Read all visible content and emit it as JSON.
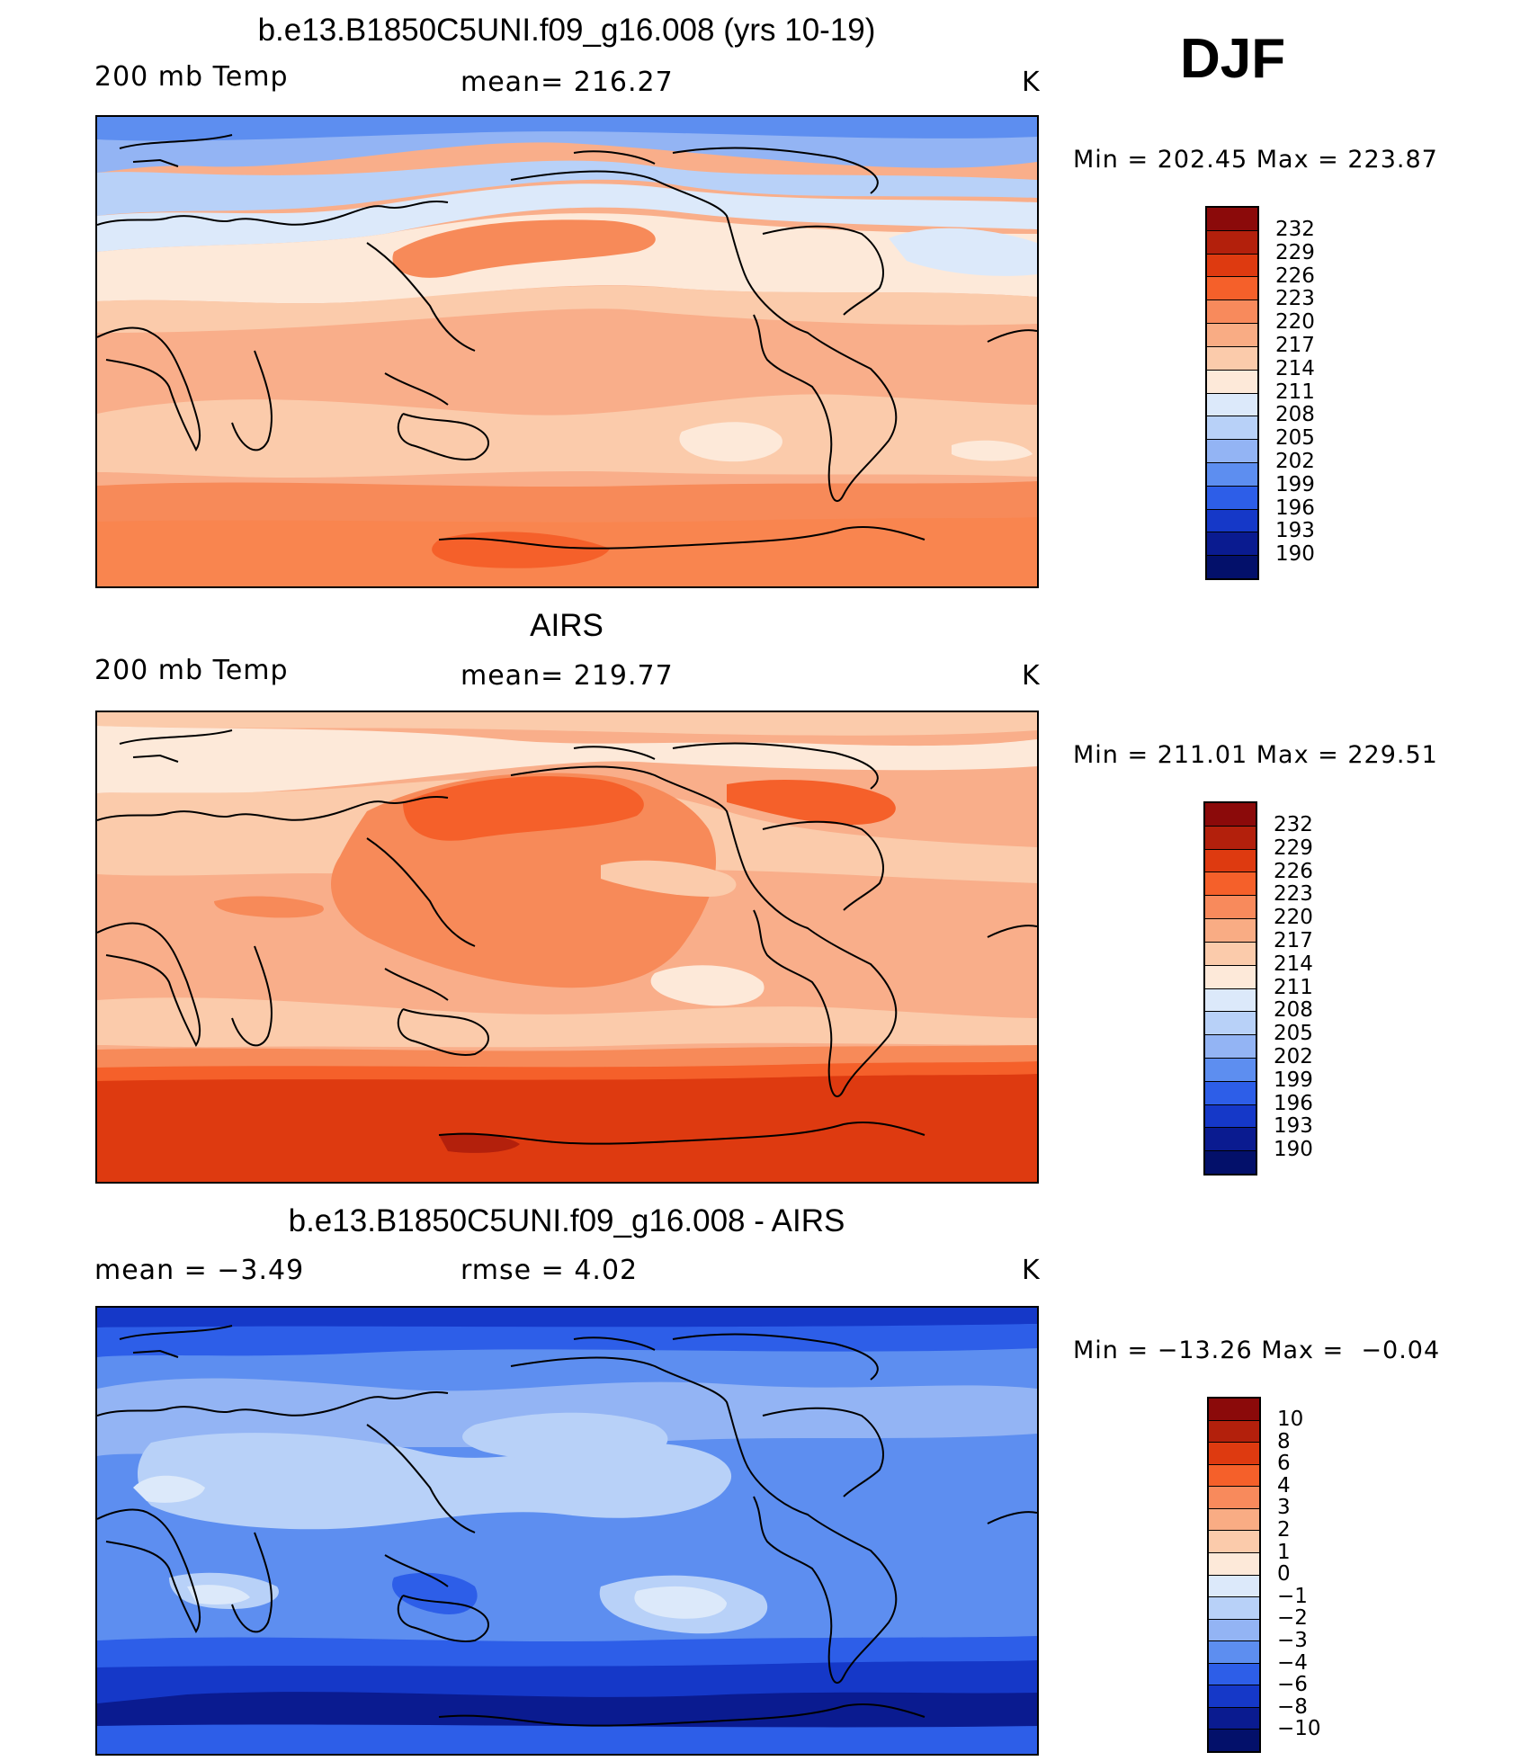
{
  "season": "DJF",
  "panels": [
    {
      "title": "b.e13.B1850C5UNI.f09_g16.008 (yrs 10-19)",
      "left_label": "200 mb Temp",
      "mid_label": "mean= 216.27",
      "units": "K",
      "minmax": "Min = 202.45 Max = 223.87",
      "colorbar_labels": [
        "232",
        "229",
        "226",
        "223",
        "220",
        "217",
        "214",
        "211",
        "208",
        "205",
        "202",
        "199",
        "196",
        "193",
        "190"
      ],
      "map_image": "model 200 mb temperature contour map"
    },
    {
      "title": "AIRS",
      "left_label": "200 mb Temp",
      "mid_label": "mean= 219.77",
      "units": "K",
      "minmax": "Min = 211.01 Max = 229.51",
      "colorbar_labels": [
        "232",
        "229",
        "226",
        "223",
        "220",
        "217",
        "214",
        "211",
        "208",
        "205",
        "202",
        "199",
        "196",
        "193",
        "190"
      ],
      "map_image": "AIRS 200 mb temperature contour map"
    },
    {
      "title": "b.e13.B1850C5UNI.f09_g16.008 - AIRS",
      "left_label": "mean =   −3.49",
      "mid_label": "rmse =    4.02",
      "units": "K",
      "minmax": "Min = −13.26 Max =  −0.04",
      "colorbar_labels": [
        "10",
        "8",
        "6",
        "4",
        "3",
        "2",
        "1",
        "0",
        "−1",
        "−2",
        "−3",
        "−4",
        "−6",
        "−8",
        "−10"
      ],
      "map_image": "model minus AIRS difference contour map"
    }
  ],
  "colorbar_colors": [
    "#8b0a0a",
    "#b3200c",
    "#de3a10",
    "#f5602a",
    "#f88a5c",
    "#f9ac84",
    "#fbcbab",
    "#fde9d9",
    "#dce9fa",
    "#b8d1f8",
    "#93b4f4",
    "#5d8ef0",
    "#2d5ee8",
    "#1538c8",
    "#0a1b90",
    "#03106a"
  ],
  "colors": {
    "ocean_light_red": "#f9ae8a",
    "med_red": "#f78a59",
    "deep_red": "#e03b10",
    "pale": "#fce0cc",
    "light_blue": "#b9d2f8",
    "blue": "#5d8ef0",
    "dark_blue": "#1538c8"
  }
}
